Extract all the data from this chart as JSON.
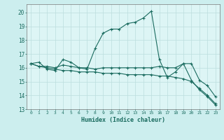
{
  "xlabel": "Humidex (Indice chaleur)",
  "bg_color": "#cceeee",
  "plot_bg": "#ddf5f5",
  "line_color": "#1a6b5f",
  "grid_color": "#bbdddd",
  "xlim": [
    -0.5,
    23.5
  ],
  "ylim": [
    13,
    20.6
  ],
  "yticks": [
    13,
    14,
    15,
    16,
    17,
    18,
    19,
    20
  ],
  "xticks": [
    0,
    1,
    2,
    3,
    4,
    5,
    6,
    7,
    8,
    9,
    10,
    11,
    12,
    13,
    14,
    15,
    16,
    17,
    18,
    19,
    20,
    21,
    22,
    23
  ],
  "line1_x": [
    0,
    1,
    2,
    3,
    4,
    5,
    6,
    7,
    8,
    9,
    10,
    11,
    12,
    13,
    14,
    15,
    16,
    17,
    18,
    19,
    20,
    21,
    22,
    23
  ],
  "line1_y": [
    16.3,
    16.4,
    15.9,
    15.8,
    16.6,
    16.4,
    16.0,
    15.9,
    17.4,
    18.5,
    18.8,
    18.8,
    19.2,
    19.3,
    19.6,
    20.1,
    16.6,
    15.3,
    15.7,
    16.3,
    15.1,
    14.4,
    13.9,
    13.3
  ],
  "line2_x": [
    0,
    1,
    2,
    3,
    4,
    5,
    6,
    7,
    8,
    9,
    10,
    11,
    12,
    13,
    14,
    15,
    16,
    17,
    18,
    19,
    20,
    21,
    22,
    23
  ],
  "line2_y": [
    16.3,
    16.1,
    16.0,
    15.9,
    15.8,
    15.8,
    15.7,
    15.7,
    15.7,
    15.6,
    15.6,
    15.6,
    15.5,
    15.5,
    15.5,
    15.5,
    15.4,
    15.4,
    15.3,
    15.2,
    15.0,
    14.5,
    14.0,
    13.4
  ],
  "line3_x": [
    0,
    1,
    2,
    3,
    4,
    5,
    6,
    7,
    8,
    9,
    10,
    11,
    12,
    13,
    14,
    15,
    16,
    17,
    18,
    19,
    20,
    21,
    22,
    23
  ],
  "line3_y": [
    16.3,
    16.1,
    16.1,
    16.0,
    16.2,
    16.1,
    16.0,
    16.0,
    15.9,
    16.0,
    16.0,
    16.0,
    16.0,
    16.0,
    16.0,
    16.0,
    16.1,
    16.0,
    16.0,
    16.3,
    16.3,
    15.1,
    14.7,
    13.9
  ]
}
